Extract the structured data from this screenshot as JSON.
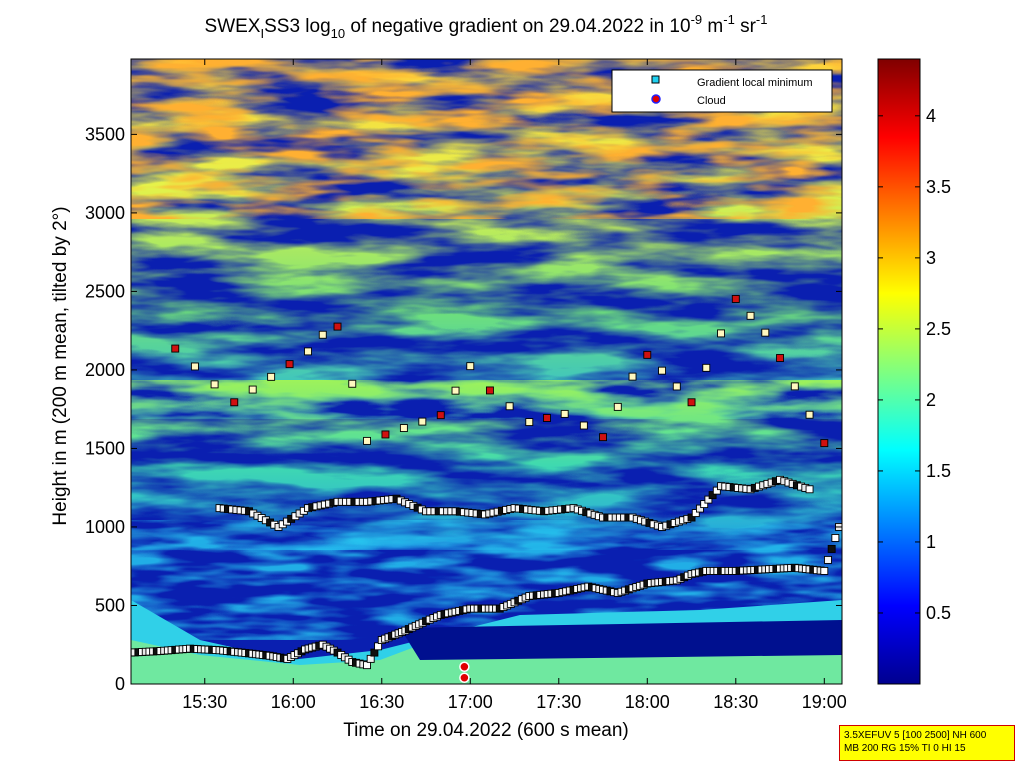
{
  "title": {
    "pre": "SWEX",
    "sub1": "I",
    "mid": "SS3 log",
    "sub2": "10",
    "post": " of negative gradient on 29.04.2022 in 10",
    "sup1": "-9",
    "unit1": " m",
    "sup2": "-1",
    "unit2": " sr",
    "sup3": "-1"
  },
  "chart_data": {
    "type": "heatmap",
    "xlabel": "Time on 29.04.2022 (600 s mean)",
    "ylabel": "Height in m (200 m mean, tilted by 2°)",
    "x_ticks": [
      "15:30",
      "16:00",
      "16:30",
      "17:00",
      "17:30",
      "18:00",
      "18:30",
      "19:00"
    ],
    "x_tick_minutes": [
      930,
      960,
      990,
      1020,
      1050,
      1080,
      1110,
      1140
    ],
    "xlim_minutes": [
      905,
      1146
    ],
    "y_ticks": [
      0,
      500,
      1000,
      1500,
      2000,
      2500,
      3000,
      3500
    ],
    "ylim": [
      0,
      3980
    ],
    "colorbar": {
      "ticks": [
        0.5,
        1,
        1.5,
        2,
        2.5,
        3,
        3.5,
        4
      ],
      "clim": [
        0,
        4.4
      ],
      "colormap": "jet"
    },
    "legend": {
      "placement": "top-right",
      "entries": [
        "Gradient local minimum",
        "Cloud"
      ]
    },
    "series": [
      {
        "name": "Gradient local minimum",
        "x": [
          905,
          915,
          925,
          935,
          945,
          952,
          958,
          964,
          970,
          975,
          980,
          985,
          990,
          998,
          1005,
          1010,
          1020,
          1030,
          1040,
          1050,
          1060,
          1070,
          1080,
          1090,
          1095,
          1100,
          1110,
          1120,
          1130,
          1140,
          1145
        ],
        "y": [
          200,
          210,
          225,
          215,
          195,
          180,
          160,
          220,
          250,
          200,
          140,
          120,
          280,
          340,
          400,
          440,
          480,
          480,
          560,
          580,
          620,
          580,
          640,
          660,
          700,
          720,
          720,
          730,
          740,
          720,
          1000
        ]
      },
      {
        "name": "Gradient local minimum",
        "x": [
          935,
          945,
          955,
          965,
          975,
          985,
          995,
          1005,
          1015,
          1025,
          1035,
          1045,
          1055,
          1065,
          1075,
          1085,
          1095,
          1105,
          1115,
          1125,
          1135
        ],
        "y": [
          1120,
          1100,
          1000,
          1120,
          1160,
          1160,
          1180,
          1100,
          1100,
          1080,
          1120,
          1100,
          1120,
          1060,
          1060,
          1000,
          1060,
          1260,
          1240,
          1300,
          1240
        ]
      },
      {
        "name": "Gradient local minimum",
        "x": [
          920,
          940,
          965,
          975,
          985,
          1010,
          1020,
          1040,
          1052,
          1065,
          1080,
          1095,
          1110,
          1125,
          1140
        ],
        "y": [
          2160,
          1800,
          2100,
          2300,
          1560,
          1700,
          2000,
          1680,
          1720,
          1560,
          2120,
          1800,
          2440,
          2100,
          1540
        ]
      },
      {
        "name": "Cloud",
        "x": [
          1018,
          1018
        ],
        "y": [
          110,
          40
        ]
      }
    ]
  },
  "info_box": {
    "line1": "3.5XEFUV 5 [100 2500] NH 600",
    "line2": "MB 200 RG 15% TI 0 HI 15"
  }
}
